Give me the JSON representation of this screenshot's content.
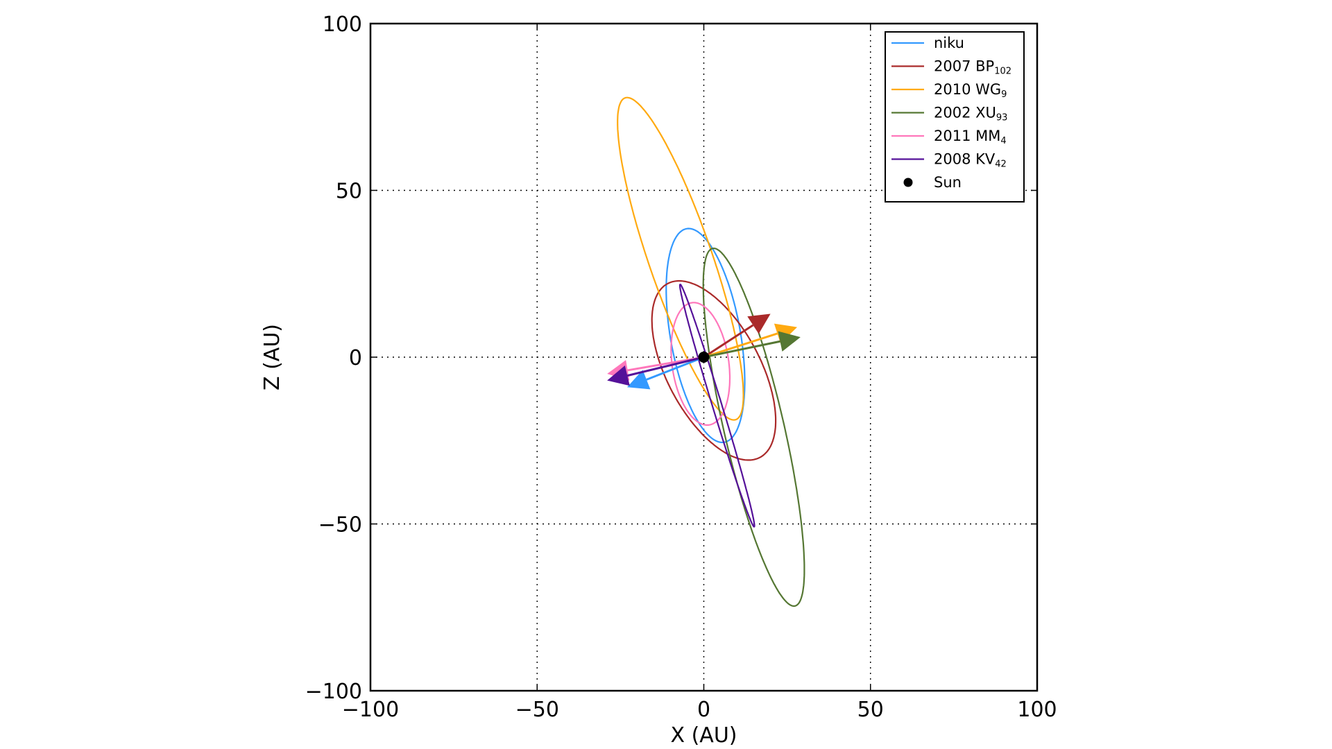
{
  "chart_data": {
    "type": "line",
    "xlabel": "X (AU)",
    "ylabel": "Z (AU)",
    "xlim": [
      -100,
      100
    ],
    "ylim": [
      -100,
      100
    ],
    "grid": true,
    "legend_placement": "top-right",
    "x_ticks": [
      -100,
      -50,
      0,
      50,
      100
    ],
    "y_ticks": [
      -100,
      -50,
      0,
      50,
      100
    ],
    "x_tick_labels": [
      "−100",
      "−50",
      "0",
      "50",
      "100"
    ],
    "y_tick_labels": [
      "−100",
      "−50",
      "0",
      "50",
      "100"
    ],
    "sun": {
      "name": "Sun",
      "x": 0,
      "z": 0,
      "color": "#000000"
    },
    "series": [
      {
        "name": "niku",
        "base": "niku",
        "sub": "",
        "color": "#3399ff",
        "orbit": {
          "cx": 0.5,
          "cz": 6.5,
          "a": 32.5,
          "b": 10.5,
          "angle_deg": 100
        },
        "arrow_end": [
          -23,
          -9
        ]
      },
      {
        "name": "2007 BP102",
        "base": "2007 BP",
        "sub": "102",
        "color": "#aa2a2a",
        "orbit": {
          "cx": 3,
          "cz": -4,
          "a": 29.5,
          "b": 14,
          "angle_deg": 118
        },
        "arrow_end": [
          20,
          13
        ]
      },
      {
        "name": "2010 WG9",
        "base": "2010 WG",
        "sub": "9",
        "color": "#ffaa11",
        "orbit": {
          "cx": -7,
          "cz": 29.5,
          "a": 51,
          "b": 9.5,
          "angle_deg": 109
        },
        "arrow_end": [
          28,
          9
        ]
      },
      {
        "name": "2002 XU93",
        "base": "2002 XU",
        "sub": "93",
        "color": "#557733",
        "orbit": {
          "cx": 15,
          "cz": -21,
          "a": 55,
          "b": 9,
          "angle_deg": 103
        },
        "arrow_end": [
          29,
          6
        ]
      },
      {
        "name": "2011 MM4",
        "base": "2011 MM",
        "sub": "4",
        "color": "#ff77bb",
        "orbit": {
          "cx": -1,
          "cz": -2,
          "a": 18.5,
          "b": 8.5,
          "angle_deg": 98
        },
        "arrow_end": [
          -29,
          -5
        ]
      },
      {
        "name": "2008 KV42",
        "base": "2008 KV",
        "sub": "42",
        "color": "#551199",
        "orbit": {
          "cx": 4,
          "cz": -14.5,
          "a": 38,
          "b": 1.4,
          "angle_deg": 107
        },
        "arrow_end": [
          -29,
          -7
        ]
      }
    ]
  }
}
